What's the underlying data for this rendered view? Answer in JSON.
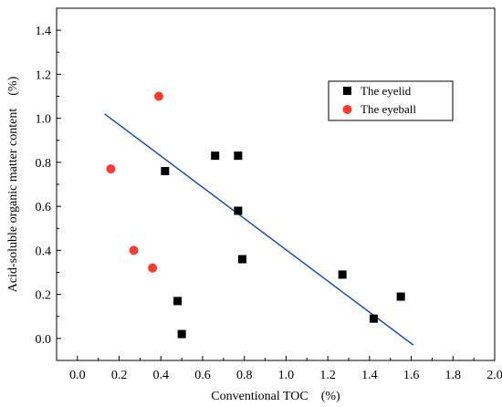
{
  "chart_data": {
    "type": "scatter",
    "xlabel": "Conventional TOC　(%)",
    "ylabel": "Acid-soluble organic matter content　(%)",
    "xlim": [
      -0.1,
      2.0
    ],
    "ylim": [
      -0.1,
      1.5
    ],
    "x_ticks": [
      "0.0",
      "0.2",
      "0.4",
      "0.6",
      "0.8",
      "1.0",
      "1.2",
      "1.4",
      "1.6",
      "1.8",
      "2.0"
    ],
    "y_ticks": [
      "0.0",
      "0.2",
      "0.4",
      "0.6",
      "0.8",
      "1.0",
      "1.2",
      "1.4"
    ],
    "grid": false,
    "legend_position": "top-right",
    "series": [
      {
        "name": "The eyelid",
        "marker": "square",
        "color": "#000000",
        "points": [
          {
            "x": 0.42,
            "y": 0.76
          },
          {
            "x": 0.66,
            "y": 0.83
          },
          {
            "x": 0.77,
            "y": 0.83
          },
          {
            "x": 0.77,
            "y": 0.58
          },
          {
            "x": 0.79,
            "y": 0.36
          },
          {
            "x": 0.48,
            "y": 0.17
          },
          {
            "x": 0.5,
            "y": 0.02
          },
          {
            "x": 1.27,
            "y": 0.29
          },
          {
            "x": 1.42,
            "y": 0.09
          },
          {
            "x": 1.55,
            "y": 0.19
          }
        ]
      },
      {
        "name": "The eyeball",
        "marker": "circle",
        "color": "#ff3b30",
        "points": [
          {
            "x": 0.39,
            "y": 1.1
          },
          {
            "x": 0.16,
            "y": 0.77
          },
          {
            "x": 0.27,
            "y": 0.4
          },
          {
            "x": 0.36,
            "y": 0.32
          }
        ]
      }
    ],
    "fit_line": {
      "color": "#1f4fa8",
      "x": [
        0.13,
        1.61
      ],
      "y": [
        1.02,
        -0.03
      ]
    }
  }
}
